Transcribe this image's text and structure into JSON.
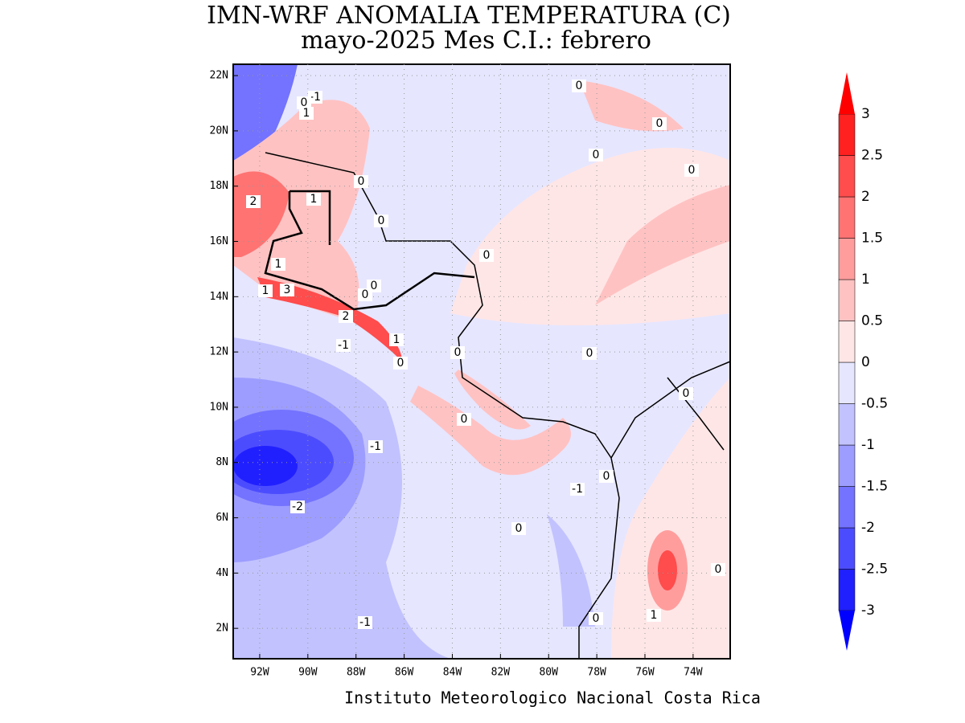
{
  "map": {
    "title": "IMN-WRF  ANOMALIA TEMPERATURA (C)",
    "subtitle": "mayo-2025 Mes C.I.: febrero",
    "footer": "Instituto Meteorologico Nacional Costa Rica",
    "xlim": [
      -93.1,
      -72.46
    ],
    "ylim": [
      0.9,
      22.41
    ],
    "xticks": [
      {
        "value": -92,
        "label": "92W"
      },
      {
        "value": -90,
        "label": "90W"
      },
      {
        "value": -88,
        "label": "88W"
      },
      {
        "value": -86,
        "label": "86W"
      },
      {
        "value": -84,
        "label": "84W"
      },
      {
        "value": -82,
        "label": "82W"
      },
      {
        "value": -80,
        "label": "80W"
      },
      {
        "value": -78,
        "label": "78W"
      },
      {
        "value": -76,
        "label": "76W"
      },
      {
        "value": -74,
        "label": "74W"
      }
    ],
    "yticks": [
      {
        "value": 2,
        "label": "2N"
      },
      {
        "value": 4,
        "label": "4N"
      },
      {
        "value": 6,
        "label": "6N"
      },
      {
        "value": 8,
        "label": "8N"
      },
      {
        "value": 10,
        "label": "10N"
      },
      {
        "value": 12,
        "label": "12N"
      },
      {
        "value": 14,
        "label": "14N"
      },
      {
        "value": 16,
        "label": "16N"
      },
      {
        "value": 18,
        "label": "18N"
      },
      {
        "value": 20,
        "label": "20N"
      },
      {
        "value": 22,
        "label": "22N"
      }
    ],
    "grid": true,
    "colorbar": {
      "levels": [
        -3,
        -2.5,
        -2,
        -1.5,
        -1,
        -0.5,
        0,
        0.5,
        1,
        1.5,
        2,
        2.5,
        3
      ],
      "colors": [
        "#2020ff",
        "#4c4cff",
        "#7373ff",
        "#9d9dff",
        "#c2c2ff",
        "#e6e6ff",
        "#ffe6e6",
        "#ffc2c2",
        "#ff9d9d",
        "#ff7373",
        "#ff4c4c",
        "#ff2020"
      ],
      "extend_colors": [
        "#0000ff",
        "#ff0000"
      ]
    },
    "contour_labels": [
      -1,
      0,
      1,
      0,
      0,
      0,
      0,
      0,
      2,
      1,
      0,
      0,
      1,
      0,
      1,
      3,
      0,
      2,
      -1,
      1,
      0,
      0,
      0,
      0,
      0,
      -1,
      0,
      -1,
      -2,
      0,
      0,
      0,
      1,
      -1
    ]
  }
}
